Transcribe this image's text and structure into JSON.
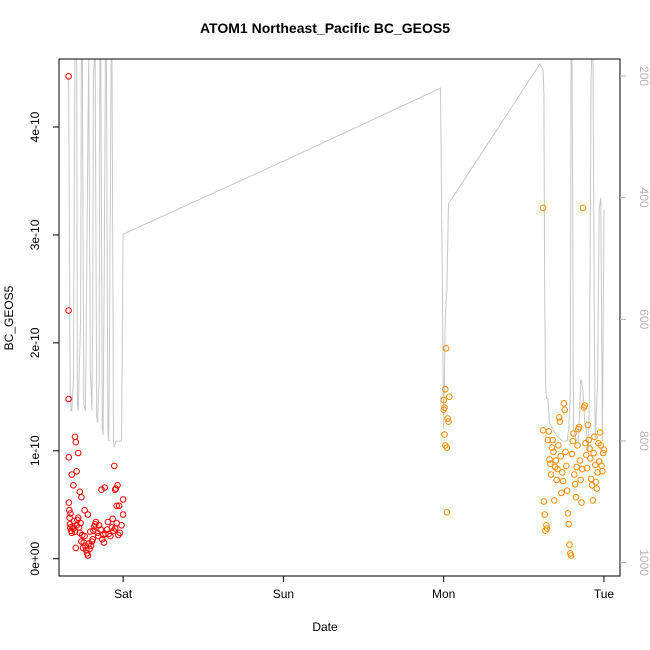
{
  "chart_data": {
    "type": "scatter",
    "title": "ATOM1 Northeast_Pacific BC_GEOS5",
    "xlabel": "Date",
    "ylabel": "BC_GEOS5",
    "x_axis": {
      "unit": "days from first plotted Friday 00:00",
      "range": [
        4.6,
        8.1
      ],
      "ticks": [
        {
          "label": "Sat",
          "value": 5
        },
        {
          "label": "Sun",
          "value": 6
        },
        {
          "label": "Mon",
          "value": 7
        },
        {
          "label": "Tue",
          "value": 8
        }
      ]
    },
    "y_left": {
      "range": [
        -1.6e-11,
        4.63e-10
      ],
      "ticks": [
        {
          "label": "0e+00",
          "value": 0
        },
        {
          "label": "1e-10",
          "value": 1e-10
        },
        {
          "label": "2e-10",
          "value": 2e-10
        },
        {
          "label": "3e-10",
          "value": 3e-10
        },
        {
          "label": "4e-10",
          "value": 4e-10
        }
      ]
    },
    "y_right": {
      "label": "",
      "reversed": true,
      "range": [
        1022,
        172
      ],
      "ticks": [
        {
          "label": "200",
          "value": 200
        },
        {
          "label": "400",
          "value": 400
        },
        {
          "label": "600",
          "value": 600
        },
        {
          "label": "800",
          "value": 800
        },
        {
          "label": "1000",
          "value": 1000
        }
      ]
    },
    "colors": {
      "series_1": "#ff0000",
      "series_2": "#ff8c00",
      "pressure_line": "#c8c8c8",
      "right_axis_text": "#b4b4b4"
    },
    "series": [
      {
        "color": "#ff0000",
        "x": [
          4.66,
          4.66,
          4.66,
          4.661,
          4.662,
          4.664,
          4.666,
          4.668,
          4.67,
          4.672,
          4.675,
          4.68,
          4.685,
          4.69,
          4.695,
          4.7,
          4.705,
          4.71,
          4.715,
          4.72,
          4.725,
          4.73,
          4.735,
          4.74,
          4.745,
          4.75,
          4.755,
          4.76,
          4.765,
          4.77,
          4.775,
          4.78,
          4.785,
          4.79,
          4.8,
          4.81,
          4.815,
          4.82,
          4.83,
          4.84,
          4.85,
          4.86,
          4.87,
          4.875,
          4.88,
          4.89,
          4.9,
          4.905,
          4.91,
          4.92,
          4.93,
          4.94,
          4.95,
          4.96,
          4.97,
          4.98,
          4.99,
          5.0,
          5.0,
          4.955,
          4.965,
          4.975,
          4.935,
          4.885,
          4.865,
          4.845,
          4.825,
          4.805,
          4.795,
          4.7,
          4.705,
          4.71,
          4.72,
          4.73,
          4.74,
          4.69,
          4.68,
          4.76,
          4.78,
          4.945,
          4.95,
          4.96
        ],
        "y": [
          4.47e-10,
          2.3e-10,
          1.48e-10,
          9.4e-11,
          5.2e-11,
          4.5e-11,
          3.8e-11,
          3.2e-11,
          2.9e-11,
          4.2e-11,
          2.6e-11,
          2.4e-11,
          3e-11,
          2.8e-11,
          3.5e-11,
          2.5e-11,
          1e-11,
          3.1e-11,
          3.6e-11,
          3.8e-11,
          2.9e-11,
          2.4e-11,
          3.3e-11,
          1.6e-11,
          2.2e-11,
          1e-11,
          1.5e-11,
          2.1e-11,
          1.2e-11,
          8e-12,
          5e-12,
          3e-12,
          1.4e-11,
          9e-12,
          1.2e-11,
          1.8e-11,
          2.6e-11,
          3e-11,
          3.4e-11,
          2.4e-11,
          3.1e-11,
          2.7e-11,
          1.8e-11,
          2.2e-11,
          1.5e-11,
          2.3e-11,
          2.7e-11,
          3.4e-11,
          2.3e-11,
          2.1e-11,
          2.9e-11,
          2.6e-11,
          2.8e-11,
          3.3e-11,
          2.2e-11,
          2.4e-11,
          3.1e-11,
          5.5e-11,
          4.1e-11,
          6.5e-11,
          6.8e-11,
          4.9e-11,
          3.7e-11,
          6.6e-11,
          6.4e-11,
          2.1e-11,
          3.2e-11,
          1.6e-11,
          2.5e-11,
          1.13e-10,
          1.08e-10,
          8.1e-11,
          9.8e-11,
          6.2e-11,
          5.7e-11,
          6.8e-11,
          7.8e-11,
          4.5e-11,
          4.1e-11,
          8.6e-11,
          6.4e-11,
          4.9e-11
        ]
      },
      {
        "color": "#ff8c00",
        "x": [
          7.0,
          7.0,
          7.005,
          7.005,
          7.01,
          7.01,
          7.015,
          7.02,
          7.02,
          7.025,
          7.03,
          7.035,
          7.62,
          7.62,
          7.625,
          7.63,
          7.635,
          7.64,
          7.645,
          7.65,
          7.655,
          7.66,
          7.665,
          7.67,
          7.675,
          7.68,
          7.685,
          7.69,
          7.695,
          7.7,
          7.705,
          7.71,
          7.715,
          7.72,
          7.725,
          7.73,
          7.735,
          7.74,
          7.745,
          7.75,
          7.755,
          7.76,
          7.765,
          7.77,
          7.775,
          7.78,
          7.785,
          7.79,
          7.795,
          7.8,
          7.805,
          7.81,
          7.815,
          7.82,
          7.825,
          7.83,
          7.835,
          7.84,
          7.845,
          7.85,
          7.855,
          7.86,
          7.865,
          7.87,
          7.875,
          7.88,
          7.885,
          7.89,
          7.895,
          7.9,
          7.905,
          7.91,
          7.915,
          7.92,
          7.925,
          7.93,
          7.935,
          7.94,
          7.945,
          7.95,
          7.955,
          7.96,
          7.965,
          7.97,
          7.975,
          7.98,
          7.985,
          7.99,
          7.995,
          8.0
        ],
        "y": [
          1.38e-10,
          1.47e-10,
          1.4e-10,
          1.15e-10,
          1.05e-10,
          1.57e-10,
          1.95e-10,
          1.03e-10,
          4.3e-11,
          1.3e-10,
          1.27e-10,
          1.5e-10,
          3.25e-10,
          1.19e-10,
          5.3e-11,
          4.1e-11,
          2.6e-11,
          3.1e-11,
          2.8e-11,
          1.1e-10,
          1.18e-10,
          9.2e-11,
          8.8e-11,
          7.8e-11,
          1.03e-10,
          1.1e-10,
          9.9e-11,
          5.4e-11,
          8.5e-11,
          9.1e-11,
          7.3e-11,
          8.3e-11,
          1.05e-10,
          1.31e-10,
          1.27e-10,
          9.5e-11,
          6.1e-11,
          8e-11,
          7.2e-11,
          1.44e-10,
          1.38e-10,
          9.9e-11,
          8.6e-11,
          6.3e-11,
          4.2e-11,
          3.2e-11,
          1.3e-11,
          5e-12,
          3e-12,
          9.7e-11,
          1.09e-10,
          1.16e-10,
          7.8e-11,
          6.9e-11,
          5.7e-11,
          8.5e-11,
          1.05e-10,
          1.2e-10,
          1.22e-10,
          9.1e-11,
          7.3e-11,
          5.2e-11,
          8.3e-11,
          3.25e-10,
          1.4e-10,
          1.42e-10,
          1.07e-10,
          9.6e-11,
          8.4e-11,
          1.24e-10,
          1.1e-10,
          1.02e-10,
          9.3e-11,
          7.4e-11,
          6.8e-11,
          5.4e-11,
          9.8e-11,
          1.13e-10,
          8.7e-11,
          7.1e-11,
          6.5e-11,
          8e-11,
          1.07e-10,
          9e-11,
          1.17e-10,
          1.05e-10,
          8.6e-11,
          8.1e-11,
          9.8e-11,
          1.01e-10
        ]
      }
    ],
    "pressure_line": {
      "color": "#c8c8c8",
      "x": [
        4.66,
        4.665,
        4.67,
        4.675,
        4.68,
        4.69,
        4.695,
        4.7,
        4.71,
        4.715,
        4.72,
        4.735,
        4.74,
        4.745,
        4.755,
        4.765,
        4.77,
        4.78,
        4.785,
        4.795,
        4.805,
        4.81,
        4.815,
        4.825,
        4.835,
        4.84,
        4.85,
        4.855,
        4.86,
        4.87,
        4.875,
        4.88,
        4.89,
        4.895,
        4.905,
        4.91,
        4.915,
        4.925,
        4.93,
        4.94,
        4.945,
        4.955,
        4.97,
        4.99,
        5.0,
        6.0,
        6.98,
        7.0,
        7.01,
        7.02,
        7.03,
        7.6,
        7.62,
        7.625,
        7.63,
        7.635,
        7.64,
        7.65,
        7.66,
        7.7,
        7.74,
        7.75,
        7.76,
        7.77,
        7.78,
        7.79,
        7.795,
        7.8,
        7.81,
        7.82,
        7.83,
        7.84,
        7.85,
        7.855,
        7.86,
        7.87,
        7.88,
        7.89,
        7.9,
        7.905,
        7.91,
        7.92,
        7.93,
        7.94,
        7.945,
        7.96,
        7.97,
        7.98,
        7.99,
        8.0
      ],
      "y": [
        205,
        460,
        720,
        750,
        750,
        700,
        400,
        160,
        120,
        740,
        750,
        600,
        160,
        120,
        740,
        750,
        620,
        300,
        170,
        680,
        750,
        600,
        200,
        150,
        760,
        770,
        700,
        160,
        130,
        780,
        790,
        600,
        140,
        120,
        780,
        800,
        650,
        180,
        130,
        800,
        810,
        800,
        800,
        800,
        460,
        340,
        220,
        780,
        600,
        550,
        410,
        180,
        190,
        230,
        560,
        700,
        730,
        730,
        770,
        790,
        800,
        800,
        800,
        800,
        780,
        720,
        160,
        100,
        780,
        790,
        800,
        800,
        740,
        700,
        700,
        720,
        770,
        780,
        820,
        800,
        700,
        200,
        120,
        620,
        800,
        700,
        420,
        400,
        800,
        420
      ]
    }
  }
}
